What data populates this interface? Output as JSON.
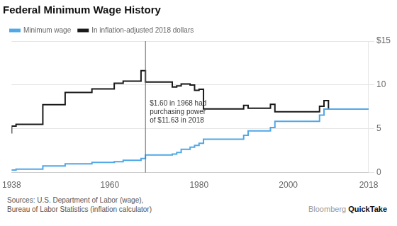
{
  "chart_data": {
    "type": "line",
    "title": "Federal Minimum Wage History",
    "line_style": "step",
    "x": [
      1938,
      1939,
      1945,
      1950,
      1956,
      1961,
      1963,
      1967,
      1968,
      1974,
      1975,
      1976,
      1978,
      1979,
      1980,
      1981,
      1990,
      1991,
      1996,
      1997,
      2007,
      2008,
      2009,
      2018
    ],
    "series": [
      {
        "name": "Minimum wage",
        "color": "#4fa8e8",
        "values": [
          0.25,
          0.3,
          0.4,
          0.75,
          1.0,
          1.15,
          1.25,
          1.4,
          1.6,
          2.0,
          2.1,
          2.3,
          2.65,
          2.9,
          3.1,
          3.35,
          3.8,
          4.25,
          4.75,
          5.15,
          5.85,
          6.55,
          7.25,
          7.25
        ]
      },
      {
        "name": "In inflation-adjusted 2018 dollars",
        "color": "#1a1a1a",
        "values": [
          4.45,
          5.3,
          5.5,
          7.75,
          9.15,
          9.55,
          10.19,
          10.44,
          11.63,
          10.34,
          9.77,
          9.89,
          10.12,
          9.98,
          9.39,
          9.5,
          7.26,
          7.67,
          7.35,
          7.79,
          6.93,
          7.57,
          8.22,
          7.25
        ]
      }
    ],
    "xlim": [
      1938,
      2018
    ],
    "xticks": [
      1938,
      1960,
      1980,
      2000,
      2018
    ],
    "ylim": [
      0,
      15
    ],
    "yticks": [
      0,
      5,
      10,
      {
        "value": 15,
        "label": "$15"
      }
    ],
    "grid": "y",
    "legend": "top left",
    "annotation": {
      "x": 1968,
      "color": "#666666",
      "text": "$1.60 in 1968 had\npurchasing power\nof $11.63 in 2018"
    },
    "source": "Sources: U.S. Department of Labor (wage),\nBureau of Labor Statistics (inflation calculator)",
    "credit": [
      "Bloomberg",
      "QuickTake"
    ]
  }
}
